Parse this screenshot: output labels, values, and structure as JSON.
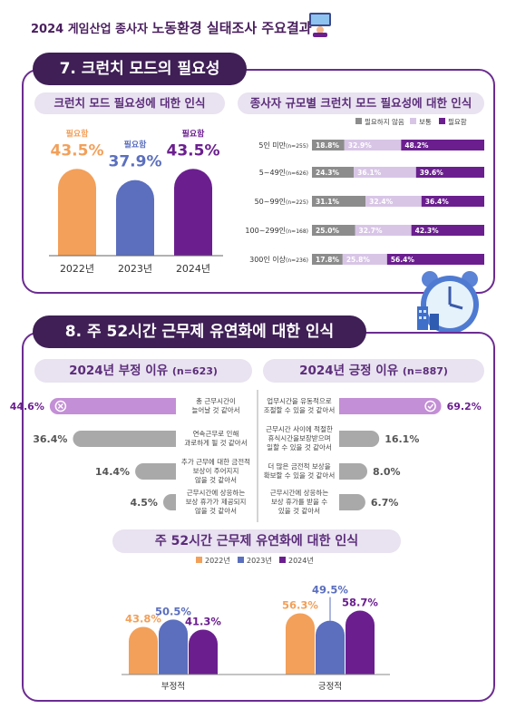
{
  "header": {
    "prefix": "2024 게임산업 종사자",
    "title": "노동환경 실태조사 주요결과"
  },
  "colors": {
    "purple": "#6b1f8f",
    "light_purple": "#d8c5e6",
    "gray": "#8c8c8c",
    "orange": "#f2a05a",
    "blue": "#5b6fbe",
    "navy_title": "#3f1f55"
  },
  "section7": {
    "title": "7. 크런치 모드의 필요성",
    "left_heading": "크런치 모드 필요성에 대한 인식",
    "right_heading": "종사자 규모별 크런치 모드 필요성에 대한 인식"
  },
  "section8": {
    "title": "8. 주 52시간 근무제 유연화에 대한 인식",
    "neg_heading": "2024년 부정 이유",
    "neg_n": "(n=623)",
    "pos_heading": "2024년 긍정 이유",
    "pos_n": "(n=887)",
    "bottom_heading": "주 52시간 근무제 유연화에 대한 인식"
  },
  "chart_data": [
    {
      "type": "bar",
      "title": "크런치 모드 필요성에 대한 인식",
      "categories": [
        "2022년",
        "2023년",
        "2024년"
      ],
      "series": [
        {
          "name": "필요함",
          "values": [
            43.5,
            37.9,
            43.5
          ]
        }
      ],
      "value_labels": [
        "43.5%",
        "37.9%",
        "43.5%"
      ],
      "colors": [
        "#f2a05a",
        "#5b6fbe",
        "#6b1f8f"
      ]
    },
    {
      "type": "bar",
      "stacked": true,
      "orientation": "horizontal",
      "title": "종사자 규모별 크런치 모드 필요성에 대한 인식",
      "legend": [
        "필요하지 않음",
        "보통",
        "필요함"
      ],
      "categories": [
        {
          "label": "5인 미만",
          "n": "(n=255)"
        },
        {
          "label": "5~49인",
          "n": "(n=626)"
        },
        {
          "label": "50~99인",
          "n": "(n=225)"
        },
        {
          "label": "100~299인",
          "n": "(n=168)"
        },
        {
          "label": "300인 이상",
          "n": "(n=236)"
        }
      ],
      "series": [
        {
          "name": "필요하지 않음",
          "values": [
            18.8,
            24.3,
            31.1,
            25.0,
            17.8
          ],
          "labels": [
            "18.8%",
            "24.3%",
            "31.1%",
            "25.0%",
            "17.8%"
          ]
        },
        {
          "name": "보통",
          "values": [
            32.9,
            36.1,
            32.4,
            32.7,
            25.8
          ],
          "labels": [
            "32.9%",
            "36.1%",
            "32.4%",
            "32.7%",
            "25.8%"
          ]
        },
        {
          "name": "필요함",
          "values": [
            48.2,
            39.6,
            36.4,
            42.3,
            56.4
          ],
          "labels": [
            "48.2%",
            "39.6%",
            "36.4%",
            "42.3%",
            "56.4%"
          ]
        }
      ]
    },
    {
      "type": "bar",
      "orientation": "horizontal",
      "title": "2024년 부정 이유 (n=623)",
      "categories": [
        [
          "총 근무시간이",
          "늘어날 것 같아서"
        ],
        [
          "연속근무로 인해",
          "과로하게 될 것 같아서"
        ],
        [
          "추가 근무에 대한 금전적",
          "보상이 주어지지",
          "않을 것 같아서"
        ],
        [
          "근무시간에 상응하는",
          "보상 휴가가 제공되지",
          "않을 것 같아서"
        ]
      ],
      "values": [
        44.6,
        36.4,
        14.4,
        4.5
      ],
      "labels": [
        "44.6%",
        "36.4%",
        "14.4%",
        "4.5%"
      ]
    },
    {
      "type": "bar",
      "orientation": "horizontal",
      "title": "2024년 긍정 이유 (n=887)",
      "categories": [
        [
          "업무시간을 유동적으로",
          "조절할 수 있을 것 같아서"
        ],
        [
          "근무시간 사이에 적절한",
          "휴식시간을보장받으며",
          "일할 수 있을 것 같아서"
        ],
        [
          "더 많은 금전적 보상을",
          "확보할 수 있을 것 같아서"
        ],
        [
          "근무시간에 상응하는",
          "보상 휴가를 받을 수",
          "있을 것 같아서"
        ]
      ],
      "values": [
        69.2,
        16.1,
        8.0,
        6.7
      ],
      "labels": [
        "69.2%",
        "16.1%",
        "8.0%",
        "6.7%"
      ]
    },
    {
      "type": "bar",
      "title": "주 52시간 근무제 유연화에 대한 인식",
      "categories": [
        "부정적",
        "긍정적"
      ],
      "series": [
        {
          "name": "2022년",
          "values": [
            43.8,
            56.3
          ],
          "labels": [
            "43.8%",
            "56.3%"
          ]
        },
        {
          "name": "2023년",
          "values": [
            50.5,
            49.5
          ],
          "labels": [
            "50.5%",
            "49.5%"
          ]
        },
        {
          "name": "2024년",
          "values": [
            41.3,
            58.7
          ],
          "labels": [
            "41.3%",
            "58.7%"
          ]
        }
      ],
      "colors": [
        "#f2a05a",
        "#5b6fbe",
        "#6b1f8f"
      ]
    }
  ]
}
